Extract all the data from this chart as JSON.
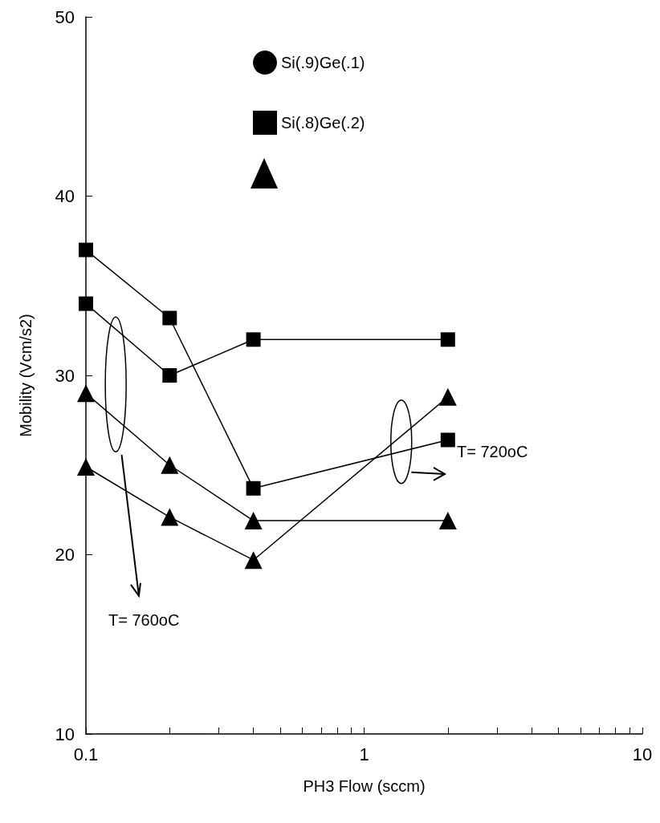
{
  "chart_data": {
    "type": "line",
    "xlabel": "PH3 Flow (sccm)",
    "ylabel": "Mobility (Vcm/s2)",
    "x": [
      0.1,
      0.2,
      0.4,
      2
    ],
    "series": [
      {
        "name": "Si(.9)Ge(.1)",
        "color": "#000000",
        "marker": "circle",
        "values": [
          null,
          null,
          null,
          null
        ]
      },
      {
        "name": "Si(.8)Ge(.2)",
        "color": "#000000",
        "marker": "square",
        "values": [
          37,
          33.2,
          23.7,
          26.4
        ]
      },
      {
        "color": "#000000",
        "marker": "square",
        "values": [
          34,
          30,
          32,
          32
        ]
      },
      {
        "color": "#000000",
        "marker": "triangle",
        "values": [
          29,
          25,
          21.9,
          21.9
        ]
      },
      {
        "color": "#000000",
        "marker": "triangle",
        "values": [
          24.9,
          22.1,
          19.7,
          28.8
        ]
      }
    ],
    "log": "x",
    "xlim": [
      0.1,
      10
    ],
    "xticks": [
      {
        "value": 0.1,
        "label": "0.1"
      },
      {
        "value": 0.2,
        "label": null
      },
      {
        "value": 0.3,
        "label": null
      },
      {
        "value": 0.4,
        "label": null
      },
      {
        "value": 0.5,
        "label": null
      },
      {
        "value": 0.6,
        "label": null
      },
      {
        "value": 0.7,
        "label": null
      },
      {
        "value": 0.8,
        "label": null
      },
      {
        "value": 0.9,
        "label": null
      },
      1,
      {
        "value": 2,
        "label": null
      },
      {
        "value": 3,
        "label": null
      },
      {
        "value": 4,
        "label": null
      },
      {
        "value": 5,
        "label": null
      },
      {
        "value": 6,
        "label": null
      },
      {
        "value": 7,
        "label": null
      },
      {
        "value": 8,
        "label": null
      },
      {
        "value": 9,
        "label": null
      },
      10
    ],
    "ylim": [
      10,
      50
    ],
    "yticks": [
      10,
      20,
      30,
      40,
      50
    ],
    "grid": false,
    "legend": "top",
    "line_style": "solid",
    "annotations": [
      "T= 760oC",
      "T= 720oC"
    ]
  }
}
